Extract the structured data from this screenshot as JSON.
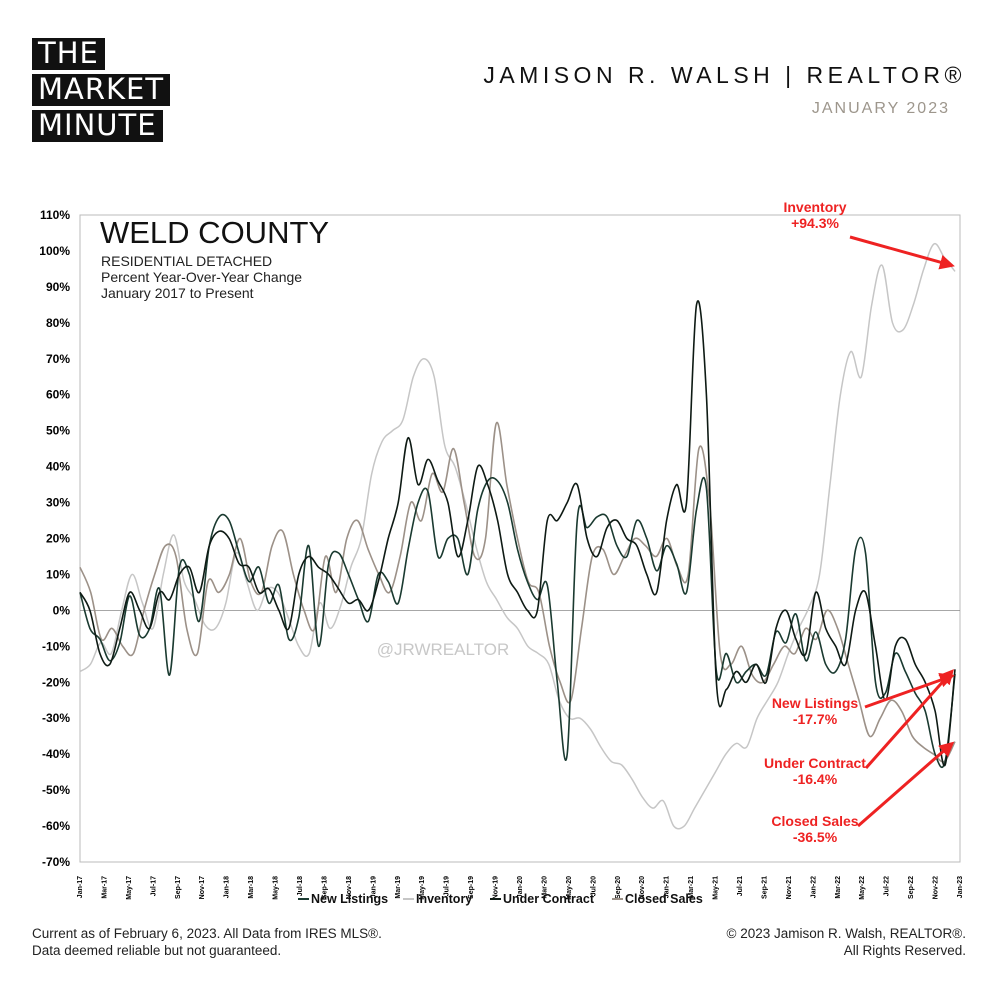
{
  "logo": {
    "line1": "THE",
    "line2": "MARKET",
    "line3": "MINUTE"
  },
  "header": {
    "brand": "JAMISON R. WALSH | REALTOR®",
    "date": "JANUARY 2023"
  },
  "footer": {
    "left1": "Current as of February 6, 2023. All Data from IRES MLS®.",
    "left2": "Data deemed reliable but not guaranteed.",
    "right1": "© 2023 Jamison R. Walsh, REALTOR®.",
    "right2": "All Rights Reserved."
  },
  "watermark": "@JRWREALTOR",
  "colors": {
    "new_listings": "#1a3a30",
    "inventory": "#c6c6c6",
    "under_contract": "#0e1a14",
    "closed_sales": "#9c9188",
    "annotation": "#ee2222"
  },
  "chart_data": {
    "type": "line",
    "title": "WELD COUNTY",
    "subtitle_lines": [
      "RESIDENTIAL DETACHED",
      "Percent Year-Over-Year Change",
      "January 2017 to Present"
    ],
    "ylim": [
      -70,
      110
    ],
    "yticks": [
      "-70%",
      "-60%",
      "-50%",
      "-40%",
      "-30%",
      "-20%",
      "-10%",
      "0%",
      "10%",
      "20%",
      "30%",
      "40%",
      "50%",
      "60%",
      "70%",
      "80%",
      "90%",
      "100%",
      "110%"
    ],
    "x_tick_labels": [
      "Jan-17",
      "Mar-17",
      "May-17",
      "Jul-17",
      "Sep-17",
      "Nov-17",
      "Jan-18",
      "Mar-18",
      "May-18",
      "Jul-18",
      "Sep-18",
      "Nov-18",
      "Jan-19",
      "Mar-19",
      "May-19",
      "Jul-19",
      "Sep-19",
      "Nov-19",
      "Jan-20",
      "Mar-20",
      "May-20",
      "Jul-20",
      "Sep-20",
      "Nov-20",
      "Jan-21",
      "Mar-21",
      "May-21",
      "Jul-21",
      "Sep-21",
      "Nov-21",
      "Jan-22",
      "Mar-22",
      "May-22",
      "Jul-22",
      "Sep-22",
      "Nov-22",
      "Jan-23"
    ],
    "grid": false,
    "legend": "bottom",
    "series": [
      {
        "name": "New Listings",
        "key": "new_listings",
        "values": [
          5,
          -5,
          -8,
          -14,
          -9,
          4,
          -7,
          -5,
          6,
          -18,
          12,
          10,
          -3,
          18,
          26,
          25,
          16,
          8,
          12,
          2,
          7,
          -8,
          -2,
          18,
          -10,
          13,
          16,
          10,
          3,
          -3,
          10,
          8,
          2,
          17,
          30,
          33,
          15,
          20,
          20,
          10,
          28,
          36,
          36,
          30,
          17,
          8,
          3,
          7,
          -20,
          -40,
          25,
          23,
          26,
          26,
          18,
          15,
          25,
          20,
          11,
          18,
          13,
          5,
          28,
          34,
          -17,
          -12,
          -20,
          -17,
          -15,
          -18,
          -6,
          -9,
          -1,
          -14,
          -6,
          -15,
          -17,
          -8,
          17,
          16,
          -20,
          -23,
          -12,
          -17,
          -23,
          -28,
          -40,
          -42,
          -17.7
        ]
      },
      {
        "name": "Inventory",
        "key": "inventory",
        "values": [
          -17,
          -15,
          -9,
          -12,
          0,
          10,
          2,
          -5,
          10,
          21,
          8,
          3,
          -4,
          -5,
          2,
          16,
          8,
          0,
          6,
          5,
          -2,
          -10,
          -12,
          2,
          -5,
          1,
          12,
          20,
          38,
          47,
          50,
          53,
          65,
          70,
          65,
          46,
          40,
          30,
          18,
          8,
          3,
          -2,
          -5,
          -10,
          -12,
          -15,
          -25,
          -30,
          -30,
          -33,
          -38,
          -42,
          -43,
          -47,
          -52,
          -55,
          -53,
          -60,
          -60,
          -55,
          -50,
          -45,
          -40,
          -37,
          -38,
          -30,
          -25,
          -20,
          -12,
          -5,
          1,
          10,
          35,
          60,
          72,
          65,
          85,
          96,
          80,
          78,
          85,
          95,
          102,
          98,
          94.3
        ]
      },
      {
        "name": "Under Contract",
        "key": "under_contract",
        "values": [
          5,
          0,
          -12,
          -15,
          -5,
          5,
          0,
          -5,
          5,
          3,
          10,
          12,
          5,
          18,
          22,
          20,
          13,
          12,
          5,
          6,
          0,
          -5,
          10,
          15,
          12,
          10,
          6,
          2,
          3,
          0,
          8,
          20,
          30,
          48,
          35,
          42,
          36,
          30,
          15,
          25,
          40,
          35,
          25,
          10,
          5,
          0,
          0,
          25,
          25,
          30,
          35,
          20,
          15,
          23,
          25,
          20,
          18,
          10,
          5,
          25,
          35,
          30,
          85,
          60,
          -20,
          -22,
          -17,
          -20,
          -15,
          -20,
          -5,
          0,
          -8,
          -12,
          5,
          -5,
          -10,
          -15,
          0,
          5,
          -10,
          -25,
          -10,
          -8,
          -15,
          -20,
          -28,
          -43,
          -16.4
        ]
      },
      {
        "name": "Closed Sales",
        "key": "closed_sales",
        "values": [
          12,
          5,
          -8,
          -5,
          -10,
          -12,
          0,
          10,
          18,
          15,
          -5,
          -12,
          8,
          5,
          10,
          20,
          8,
          5,
          18,
          22,
          10,
          0,
          -5,
          15,
          5,
          20,
          25,
          17,
          10,
          5,
          15,
          30,
          25,
          38,
          33,
          45,
          30,
          15,
          20,
          52,
          35,
          20,
          8,
          5,
          -10,
          -20,
          -25,
          -5,
          15,
          17,
          10,
          15,
          20,
          18,
          15,
          20,
          12,
          10,
          45,
          30,
          -12,
          -15,
          -10,
          -18,
          -20,
          -15,
          -10,
          -12,
          -5,
          -8,
          0,
          -5,
          -15,
          -25,
          -35,
          -30,
          -25,
          -28,
          -35,
          -38,
          -40,
          -42,
          -36.5
        ]
      }
    ],
    "annotations": [
      {
        "key": "inventory",
        "lines": [
          "Inventory",
          "+94.3%"
        ]
      },
      {
        "key": "new_listings",
        "lines": [
          "New Listings",
          "-17.7%"
        ]
      },
      {
        "key": "under_contract",
        "lines": [
          "Under Contract",
          "-16.4%"
        ]
      },
      {
        "key": "closed_sales",
        "lines": [
          "Closed Sales",
          "-36.5%"
        ]
      }
    ]
  }
}
